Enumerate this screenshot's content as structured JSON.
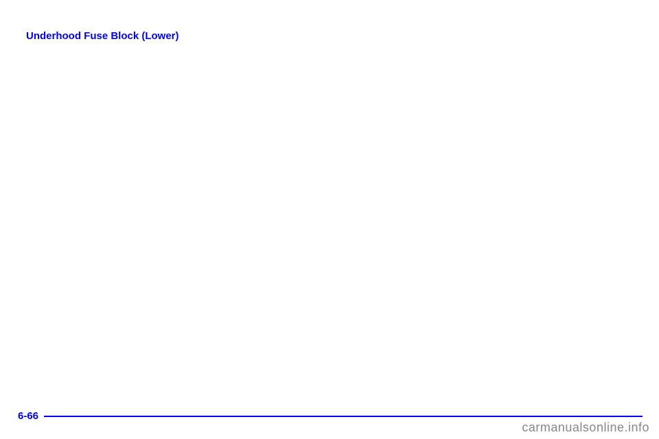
{
  "page": {
    "heading": "Underhood Fuse Block (Lower)",
    "page_number": "6-66",
    "watermark": "carmanualsonline.info"
  },
  "colors": {
    "accent": "#0000ff",
    "background": "#ffffff",
    "watermark": "#888888"
  }
}
